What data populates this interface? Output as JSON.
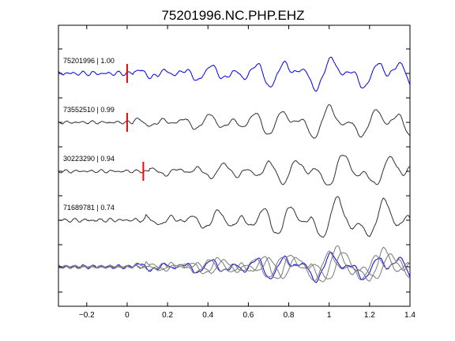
{
  "chart_data": {
    "type": "line",
    "title": "75201996.NC.PHP.EHZ",
    "xlabel": "",
    "ylabel": "",
    "xlim": [
      -0.34,
      1.4
    ],
    "xticks": [
      -0.2,
      0,
      0.2,
      0.4,
      0.6,
      0.8,
      1,
      1.2,
      1.4
    ],
    "xtick_labels": [
      "−0.2",
      "0",
      "0.2",
      "0.4",
      "0.6",
      "0.8",
      "1",
      "1.2",
      "1.4"
    ],
    "grid": false,
    "legend": "none",
    "colors": {
      "reference": "#0000ee",
      "neighbor": "#303030",
      "overlay_neighbor": "#7a7a7a",
      "pick": "#ff0000"
    },
    "series": [
      {
        "name": "75201996 | 1.00",
        "kind": "reference",
        "pick_time": 0.0
      },
      {
        "name": "73552510 | 0.99",
        "kind": "neighbor",
        "pick_time": 0.0
      },
      {
        "name": "30223290 | 0.94",
        "kind": "neighbor",
        "pick_time": 0.08
      },
      {
        "name": "71689781 | 0.74",
        "kind": "neighbor",
        "pick_time": null
      }
    ],
    "overlay": true
  }
}
